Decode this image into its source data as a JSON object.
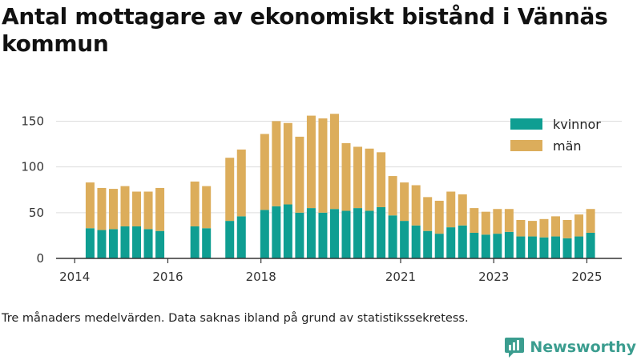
{
  "title": "Antal mottagare av ekonomiskt bistånd i Vännäs kommun",
  "footnote": "Tre månaders medelvärden. Data saknas ibland på grund av statistikssekretess.",
  "brand": {
    "name": "Newsworthy",
    "icon": "newsworthy-logo-icon"
  },
  "colors": {
    "kvinnor": "#0f9e92",
    "man": "#dcad5b",
    "grid": "#dddddd",
    "axis": "#333333"
  },
  "chart_data": {
    "type": "bar",
    "stacked": true,
    "grid": true,
    "legend_position": "top-right",
    "ylim": [
      0,
      160
    ],
    "y_ticks": [
      0,
      50,
      100,
      150
    ],
    "x_ticks": [
      {
        "label": "2014",
        "x": 2014.0
      },
      {
        "label": "2016",
        "x": 2016.0
      },
      {
        "label": "2018",
        "x": 2018.0
      },
      {
        "label": "2021",
        "x": 2021.0
      },
      {
        "label": "2023",
        "x": 2023.0
      },
      {
        "label": "2025",
        "x": 2025.0
      }
    ],
    "x_range": [
      2013.6,
      2025.75
    ],
    "series": [
      {
        "name": "kvinnor",
        "color": "#0f9e92"
      },
      {
        "name": "män",
        "color": "#dcad5b"
      }
    ],
    "points": [
      {
        "x": 2014.33,
        "kvinnor": 33,
        "man": 50
      },
      {
        "x": 2014.58,
        "kvinnor": 31,
        "man": 46
      },
      {
        "x": 2014.83,
        "kvinnor": 32,
        "man": 44
      },
      {
        "x": 2015.08,
        "kvinnor": 35,
        "man": 44
      },
      {
        "x": 2015.33,
        "kvinnor": 35,
        "man": 38
      },
      {
        "x": 2015.58,
        "kvinnor": 32,
        "man": 41
      },
      {
        "x": 2015.83,
        "kvinnor": 30,
        "man": 47
      },
      {
        "x": 2016.58,
        "kvinnor": 35,
        "man": 49
      },
      {
        "x": 2016.83,
        "kvinnor": 33,
        "man": 46
      },
      {
        "x": 2017.33,
        "kvinnor": 41,
        "man": 69
      },
      {
        "x": 2017.58,
        "kvinnor": 46,
        "man": 73
      },
      {
        "x": 2018.08,
        "kvinnor": 53,
        "man": 83
      },
      {
        "x": 2018.33,
        "kvinnor": 57,
        "man": 93
      },
      {
        "x": 2018.58,
        "kvinnor": 59,
        "man": 89
      },
      {
        "x": 2018.83,
        "kvinnor": 50,
        "man": 83
      },
      {
        "x": 2019.08,
        "kvinnor": 55,
        "man": 101
      },
      {
        "x": 2019.33,
        "kvinnor": 50,
        "man": 103
      },
      {
        "x": 2019.58,
        "kvinnor": 54,
        "man": 104
      },
      {
        "x": 2019.83,
        "kvinnor": 52,
        "man": 74
      },
      {
        "x": 2020.08,
        "kvinnor": 55,
        "man": 67
      },
      {
        "x": 2020.33,
        "kvinnor": 52,
        "man": 68
      },
      {
        "x": 2020.58,
        "kvinnor": 56,
        "man": 60
      },
      {
        "x": 2020.83,
        "kvinnor": 47,
        "man": 43
      },
      {
        "x": 2021.08,
        "kvinnor": 41,
        "man": 42
      },
      {
        "x": 2021.33,
        "kvinnor": 36,
        "man": 44
      },
      {
        "x": 2021.58,
        "kvinnor": 30,
        "man": 37
      },
      {
        "x": 2021.83,
        "kvinnor": 27,
        "man": 36
      },
      {
        "x": 2022.08,
        "kvinnor": 34,
        "man": 39
      },
      {
        "x": 2022.33,
        "kvinnor": 36,
        "man": 34
      },
      {
        "x": 2022.58,
        "kvinnor": 28,
        "man": 27
      },
      {
        "x": 2022.83,
        "kvinnor": 26,
        "man": 25
      },
      {
        "x": 2023.08,
        "kvinnor": 27,
        "man": 27
      },
      {
        "x": 2023.33,
        "kvinnor": 29,
        "man": 25
      },
      {
        "x": 2023.58,
        "kvinnor": 24,
        "man": 18
      },
      {
        "x": 2023.83,
        "kvinnor": 24,
        "man": 17
      },
      {
        "x": 2024.08,
        "kvinnor": 23,
        "man": 20
      },
      {
        "x": 2024.33,
        "kvinnor": 24,
        "man": 22
      },
      {
        "x": 2024.58,
        "kvinnor": 22,
        "man": 20
      },
      {
        "x": 2024.83,
        "kvinnor": 24,
        "man": 24
      },
      {
        "x": 2025.08,
        "kvinnor": 28,
        "man": 26
      }
    ]
  }
}
